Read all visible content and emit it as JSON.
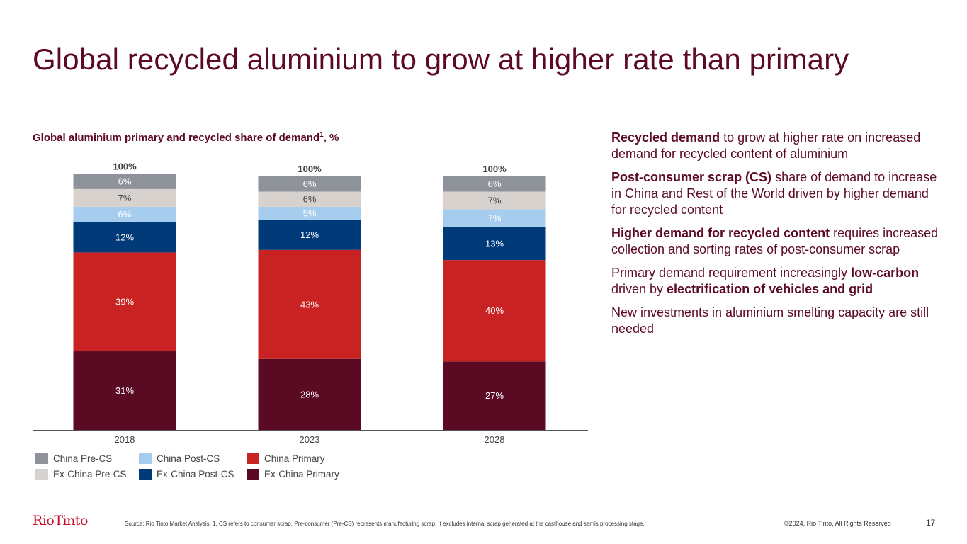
{
  "slide": {
    "title": "Global recycled aluminium to grow at higher rate than primary",
    "chart_title": "Global aluminium primary and recycled share of demand",
    "chart_title_sup": "1",
    "chart_title_suffix": ", %",
    "page_number": "17",
    "logo": "RioTinto",
    "source": "Source: Rio Tinto Market Analysis; 1. CS refers to consumer scrap. Pre-consumer (Pre-CS) represents manufacturing scrap. It excludes internal scrap generated at the casthouse and semis processing stage.",
    "copyright": "©2024, Rio Tinto, All Rights Reserved"
  },
  "bullets": [
    [
      {
        "t": "Recycled demand",
        "b": true
      },
      {
        "t": " to grow at higher rate on increased demand for recycled content of aluminium",
        "b": false
      }
    ],
    [
      {
        "t": "Post-consumer scrap (CS)",
        "b": true
      },
      {
        "t": " share of demand to increase in China and Rest of the World driven by higher demand for recycled content",
        "b": false
      }
    ],
    [
      {
        "t": "Higher demand for recycled content",
        "b": true
      },
      {
        "t": " requires increased collection and sorting rates of post-consumer scrap",
        "b": false
      }
    ],
    [
      {
        "t": "Primary demand requirement increasingly ",
        "b": false
      },
      {
        "t": "low-carbon",
        "b": true
      },
      {
        "t": " driven by ",
        "b": false
      },
      {
        "t": "electrification of vehicles and grid",
        "b": true
      }
    ],
    [
      {
        "t": "New investments in aluminium smelting capacity are still needed",
        "b": false
      }
    ]
  ],
  "chart_data": {
    "type": "bar",
    "stacked": true,
    "categories": [
      "2018",
      "2023",
      "2028"
    ],
    "totals": [
      "100%",
      "100%",
      "100%"
    ],
    "ylim": [
      0,
      100
    ],
    "series": [
      {
        "name": "Ex-China Primary",
        "color": "#5a0a22",
        "label_color": "#ffffff",
        "values": [
          31,
          28,
          27
        ],
        "labels": [
          "31%",
          "28%",
          "27%"
        ]
      },
      {
        "name": "China Primary",
        "color": "#c82222",
        "label_color": "#ffffff",
        "values": [
          39,
          43,
          40
        ],
        "labels": [
          "39%",
          "43%",
          "40%"
        ]
      },
      {
        "name": "Ex-China Post-CS",
        "color": "#003a78",
        "label_color": "#ffffff",
        "values": [
          12,
          12,
          13
        ],
        "labels": [
          "12%",
          "12%",
          "13%"
        ]
      },
      {
        "name": "China Post-CS",
        "color": "#a7cdee",
        "label_color": "#ffffff",
        "values": [
          6,
          5,
          7
        ],
        "labels": [
          "6%",
          "5%",
          "7%"
        ]
      },
      {
        "name": "Ex-China Pre-CS",
        "color": "#d8d2cf",
        "label_color": "#444444",
        "values": [
          7,
          6,
          7
        ],
        "labels": [
          "7%",
          "6%",
          "7%"
        ]
      },
      {
        "name": "China Pre-CS",
        "color": "#8e9399",
        "label_color": "#ffffff",
        "values": [
          6,
          6,
          6
        ],
        "labels": [
          "6%",
          "6%",
          "6%"
        ]
      }
    ],
    "legend_order": [
      "China Pre-CS",
      "China Post-CS",
      "China Primary",
      "Ex-China Pre-CS",
      "Ex-China Post-CS",
      "Ex-China Primary"
    ]
  }
}
